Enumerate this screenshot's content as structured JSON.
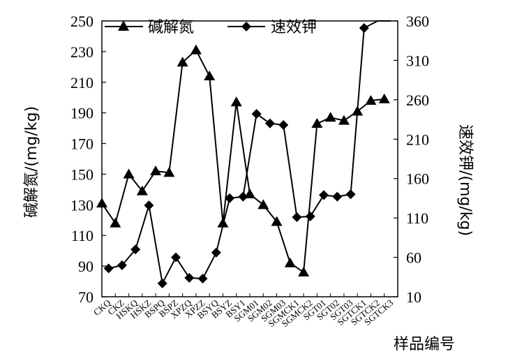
{
  "chart_data": {
    "type": "line",
    "categories": [
      "CKQ",
      "CKZ",
      "HSKQ",
      "HSKZ",
      "BSPQ",
      "BSPZ",
      "XPZQ",
      "XPZZ",
      "BSYQ",
      "BSYZ",
      "BSY1",
      "SGM01",
      "SGM02",
      "SGM03",
      "SGMCK1",
      "SGMCK2",
      "SGT01",
      "SGT02",
      "SGT03",
      "SGTCK1",
      "SGTCK2",
      "SGTCK3"
    ],
    "xlabel": "样品编号",
    "ylabel_left": "碱解氮/(mg/kg)",
    "ylabel_right": "速效钾/(mg/kg)",
    "ylim_left": [
      70,
      250
    ],
    "yticks_left": [
      70,
      90,
      110,
      130,
      150,
      170,
      190,
      210,
      230,
      250
    ],
    "ylim_right": [
      10,
      360
    ],
    "yticks_right": [
      10,
      60,
      110,
      160,
      210,
      260,
      310,
      360
    ],
    "legend_position": "top",
    "series": [
      {
        "name": "碱解氮",
        "axis": "left",
        "marker": "triangle",
        "values": [
          131,
          118,
          150,
          139,
          152,
          151,
          223,
          231,
          214,
          118,
          197,
          137,
          130,
          119,
          92,
          86,
          183,
          187,
          185,
          191,
          198,
          199
        ],
        "x_offset": 0
      },
      {
        "name": "速效钾",
        "axis": "right",
        "marker": "diamond",
        "values": [
          46,
          50,
          70,
          126,
          27,
          60,
          34,
          33,
          66,
          135,
          137,
          242,
          230,
          228,
          111,
          112,
          139,
          137,
          140,
          351,
          360,
          361
        ],
        "x_offset": 0.5
      }
    ],
    "grid": false
  }
}
